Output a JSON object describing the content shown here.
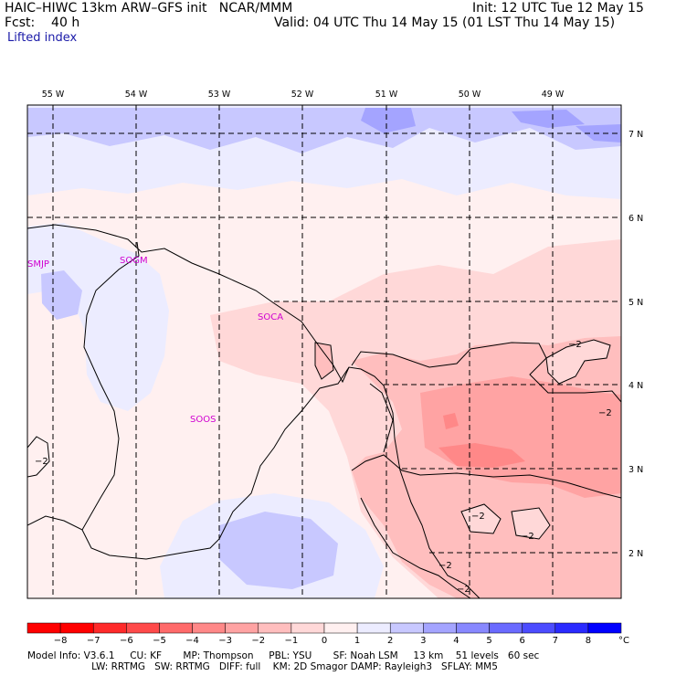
{
  "header": {
    "title": "HAIC–HIWC 13km ARW–GFS init   NCAR/MMM",
    "fcst": "Fcst:    40 h",
    "field": "Lifted index",
    "init": "Init: 12 UTC Tue 12 May 15",
    "valid": "Valid: 04 UTC Thu 14 May 15 (01 LST Thu 14 May 15)"
  },
  "map": {
    "lon_labels": [
      "55 W",
      "54 W",
      "53 W",
      "52 W",
      "51 W",
      "50 W",
      "49 W"
    ],
    "lat_labels": [
      "7 N",
      "6 N",
      "5 N",
      "4 N",
      "3 N",
      "2 N"
    ],
    "stations": [
      "SMJP",
      "SOGM",
      "SOCA",
      "SOOS"
    ],
    "contour_label": "−2"
  },
  "colorbar": {
    "ticks": [
      "−8",
      "−7",
      "−6",
      "−5",
      "−4",
      "−3",
      "−2",
      "−1",
      "0",
      "1",
      "2",
      "3",
      "4",
      "5",
      "6",
      "7",
      "8"
    ],
    "unit": "°C",
    "colors": [
      "#ff0000",
      "#ff2a2a",
      "#ff4a4a",
      "#ff6a6a",
      "#ff8888",
      "#ffa3a3",
      "#ffbebe",
      "#ffd8d8",
      "#fff0f0",
      "#ececff",
      "#c8c8ff",
      "#a4a4ff",
      "#8888ff",
      "#6a6aff",
      "#4c4cff",
      "#2a2aff",
      "#0000ff"
    ]
  },
  "footer": {
    "line1": "Model Info: V3.6.1     CU: KF       MP: Thompson     PBL: YSU       SF: Noah LSM     13 km    51 levels   60 sec",
    "line2": "                     LW: RRTMG   SW: RRTMG   DIFF: full    KM: 2D Smagor DAMP: Rayleigh3   SFLAY: MM5"
  }
}
